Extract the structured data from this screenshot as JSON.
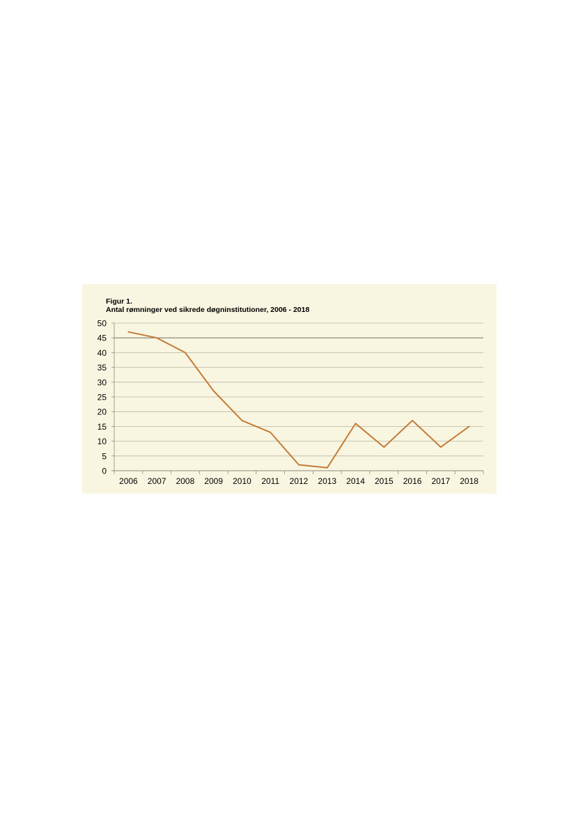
{
  "figure": {
    "label": "Figur 1.",
    "title": "Antal rømninger ved sikrede døgninstitutioner, 2006 - 2018"
  },
  "chart_data": {
    "type": "line",
    "title": "Antal rømninger ved sikrede døgninstitutioner, 2006 - 2018",
    "xlabel": "",
    "ylabel": "",
    "categories": [
      "2006",
      "2007",
      "2008",
      "2009",
      "2010",
      "2011",
      "2012",
      "2013",
      "2014",
      "2015",
      "2016",
      "2017",
      "2018"
    ],
    "series": [
      {
        "values": [
          47,
          45,
          40,
          27,
          17,
          13,
          2,
          1,
          16,
          8,
          17,
          8,
          15
        ]
      }
    ],
    "ylim": [
      0,
      50
    ],
    "yticks": [
      0,
      5,
      10,
      15,
      20,
      25,
      30,
      35,
      40,
      45,
      50
    ],
    "grid": true,
    "legend": "none",
    "colors": {
      "line": "#c47b38",
      "grid": "#b9b6a2",
      "axis": "#8c8a7c",
      "panel_background": "#f8f6e1"
    }
  }
}
